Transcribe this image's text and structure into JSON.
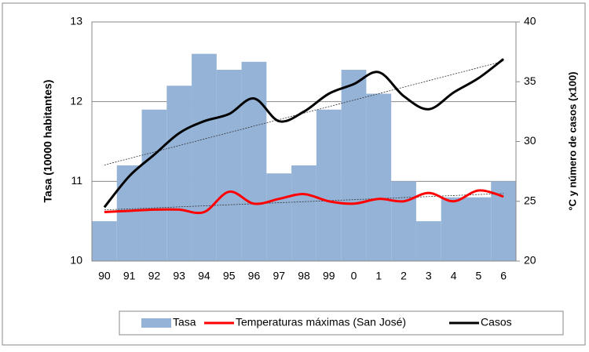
{
  "chart_data": {
    "type": "bar-line",
    "categories": [
      "90",
      "91",
      "92",
      "93",
      "94",
      "95",
      "96",
      "97",
      "98",
      "99",
      "0",
      "1",
      "2",
      "3",
      "4",
      "5",
      "6"
    ],
    "ylabel": "Tasa (10000 habitantes)",
    "y2label": "°C y número de casos (x100)",
    "ylim": [
      10,
      13
    ],
    "yticks": [
      10,
      11,
      12,
      13
    ],
    "y2lim": [
      20,
      40
    ],
    "y2ticks": [
      20,
      25,
      30,
      35,
      40
    ],
    "grid": true,
    "trendlines": true,
    "legend": "bottom",
    "series": [
      {
        "name": "Tasa",
        "kind": "bar",
        "color": "#95b3d7",
        "values": [
          10.5,
          11.2,
          11.9,
          12.2,
          12.6,
          12.4,
          12.5,
          11.1,
          11.2,
          11.9,
          12.4,
          12.1,
          11.0,
          10.5,
          10.8,
          10.8,
          11.0
        ]
      },
      {
        "name": "Temperaturas máximas (San José)",
        "kind": "line",
        "axis": "y2",
        "color": "#ff0000",
        "values": [
          24.1,
          24.2,
          24.3,
          24.3,
          24.1,
          25.8,
          24.8,
          25.2,
          25.6,
          25.0,
          24.8,
          25.2,
          25.0,
          25.7,
          25.0,
          25.9,
          25.4
        ]
      },
      {
        "name": "Casos",
        "kind": "line",
        "axis": "y2",
        "color": "#000000",
        "values": [
          24.5,
          27.1,
          28.9,
          30.7,
          31.7,
          32.3,
          33.6,
          31.7,
          32.5,
          34.0,
          34.8,
          35.8,
          33.8,
          32.7,
          34.1,
          35.3,
          36.9
        ]
      }
    ]
  }
}
